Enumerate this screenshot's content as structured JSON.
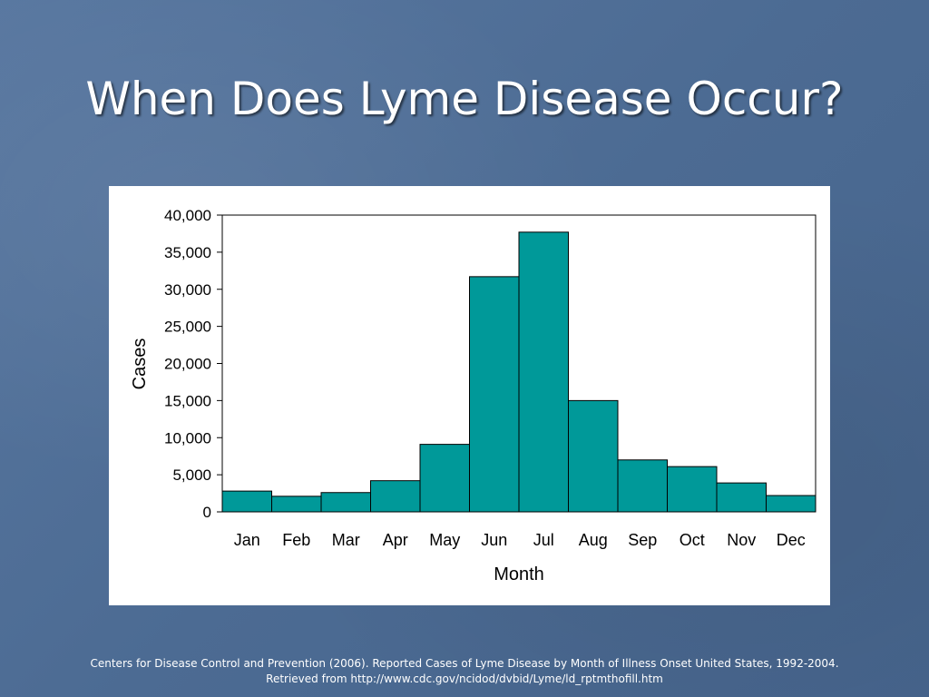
{
  "slide": {
    "title": "When Does Lyme Disease Occur?"
  },
  "citation": {
    "line1": "Centers for Disease Control and Prevention (2006). Reported Cases of Lyme Disease by Month of Illness Onset United States, 1992-2004.",
    "line2": "Retrieved from http://www.cdc.gov/ncidod/dvbid/Lyme/ld_rptmthofill.htm"
  },
  "colors": {
    "bar": "#009999",
    "background": "#4f6f96"
  },
  "chart_data": {
    "type": "bar",
    "title": "",
    "xlabel": "Month",
    "ylabel": "Cases",
    "categories": [
      "Jan",
      "Feb",
      "Mar",
      "Apr",
      "May",
      "Jun",
      "Jul",
      "Aug",
      "Sep",
      "Oct",
      "Nov",
      "Dec"
    ],
    "values": [
      2800,
      2100,
      2600,
      4200,
      9100,
      31700,
      37700,
      15000,
      7000,
      6100,
      3900,
      2200
    ],
    "ylim": [
      0,
      40000
    ],
    "yticks": [
      0,
      5000,
      10000,
      15000,
      20000,
      25000,
      30000,
      35000,
      40000
    ],
    "ytick_labels": [
      "0",
      "5,000",
      "10,000",
      "15,000",
      "20,000",
      "25,000",
      "30,000",
      "35,000",
      "40,000"
    ],
    "grid": false,
    "legend": "none"
  }
}
